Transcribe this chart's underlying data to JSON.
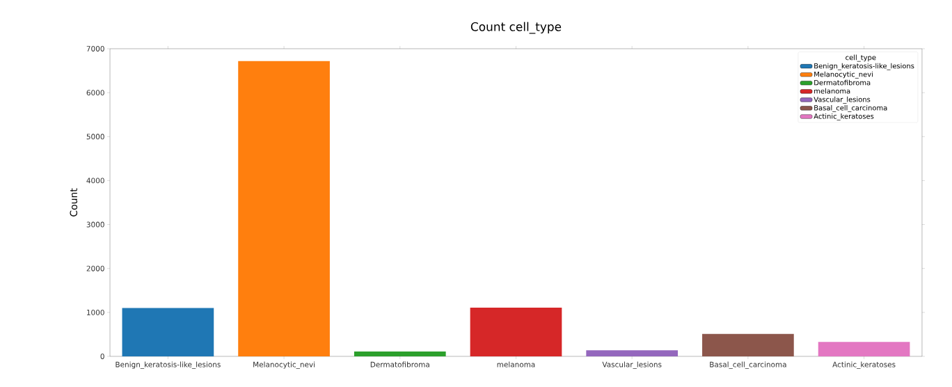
{
  "chart_data": {
    "type": "bar",
    "title": "Count cell_type",
    "ylabel": "Count",
    "legend_title": "cell_type",
    "categories": [
      "Benign_keratosis-like_lesions",
      "Melanocytic_nevi",
      "Dermatofibroma",
      "melanoma",
      "Vascular_lesions",
      "Basal_cell_carcinoma",
      "Actinic_keratoses"
    ],
    "series": [
      {
        "name": "Benign_keratosis-like_lesions",
        "color": "#1f77b4",
        "values": [
          1100,
          null,
          null,
          null,
          null,
          null,
          null
        ]
      },
      {
        "name": "Melanocytic_nevi",
        "color": "#ff7f0e",
        "values": [
          null,
          6720,
          null,
          null,
          null,
          null,
          null
        ]
      },
      {
        "name": "Dermatofibroma",
        "color": "#2ca02c",
        "values": [
          null,
          null,
          110,
          null,
          null,
          null,
          null
        ]
      },
      {
        "name": "melanoma",
        "color": "#d62728",
        "values": [
          null,
          null,
          null,
          1110,
          null,
          null,
          null
        ]
      },
      {
        "name": "Vascular_lesions",
        "color": "#9467bd",
        "values": [
          null,
          null,
          null,
          null,
          140,
          null,
          null
        ]
      },
      {
        "name": "Basal_cell_carcinoma",
        "color": "#8c564b",
        "values": [
          null,
          null,
          null,
          null,
          null,
          510,
          null
        ]
      },
      {
        "name": "Actinic_keratoses",
        "color": "#e377c2",
        "values": [
          null,
          null,
          null,
          null,
          null,
          null,
          330
        ]
      }
    ],
    "ylim": [
      0,
      7000
    ],
    "yticks": [
      0,
      1000,
      2000,
      3000,
      4000,
      5000,
      6000,
      7000
    ],
    "legend": "top right",
    "grid": false
  }
}
